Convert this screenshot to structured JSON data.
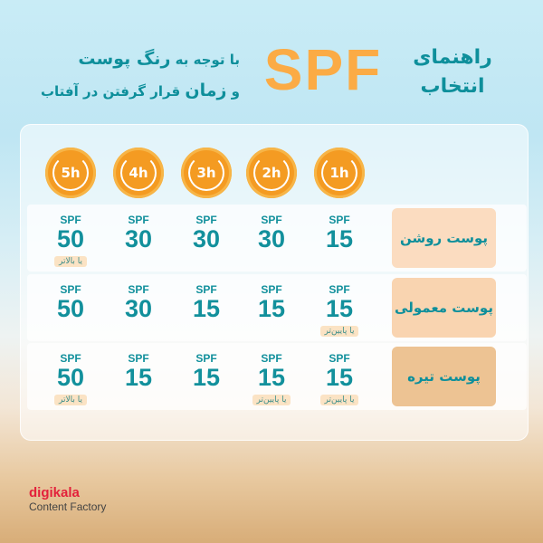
{
  "header": {
    "title_right_line1": "راهنمای",
    "title_right_line2": "انتخاب",
    "spf": "SPF",
    "subtitle_line1_a": "با توجه به ",
    "subtitle_line1_b": "رنگ پوست",
    "subtitle_line2_a": "و ",
    "subtitle_line2_b": "زمان",
    "subtitle_line2_c": " قرار گرفتن در آفتاب"
  },
  "hours": [
    "1h",
    "2h",
    "3h",
    "4h",
    "5h"
  ],
  "colors": {
    "accent": "#f49b22",
    "teal": "#12909c"
  },
  "rows": [
    {
      "label": "پوست روشن",
      "bg": "#fbdcc0",
      "cells": [
        {
          "s": "SPF",
          "v": "15"
        },
        {
          "s": "SPF",
          "v": "30"
        },
        {
          "s": "SPF",
          "v": "30"
        },
        {
          "s": "SPF",
          "v": "30"
        },
        {
          "s": "SPF",
          "v": "50",
          "note": "یا بالاتر"
        }
      ]
    },
    {
      "label": "پوست معمولی",
      "bg": "#f9d4b0",
      "cells": [
        {
          "s": "SPF",
          "v": "15",
          "note": "یا پایین‌تر"
        },
        {
          "s": "SPF",
          "v": "15"
        },
        {
          "s": "SPF",
          "v": "15"
        },
        {
          "s": "SPF",
          "v": "30"
        },
        {
          "s": "SPF",
          "v": "50"
        }
      ]
    },
    {
      "label": "پوست تیره",
      "bg": "#edc393",
      "cells": [
        {
          "s": "SPF",
          "v": "15",
          "note": "یا پایین‌تر"
        },
        {
          "s": "SPF",
          "v": "15",
          "note": "یا پایین‌تر"
        },
        {
          "s": "SPF",
          "v": "15"
        },
        {
          "s": "SPF",
          "v": "15"
        },
        {
          "s": "SPF",
          "v": "50",
          "note": "یا بالاتر"
        }
      ]
    }
  ],
  "logo": {
    "brand": "digikala",
    "sub": "Content Factory"
  }
}
